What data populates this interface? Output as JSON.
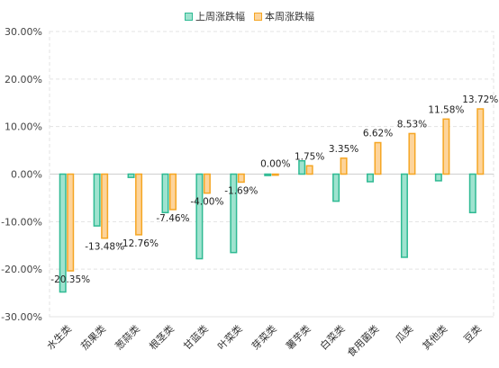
{
  "chart_data": {
    "type": "bar",
    "categories": [
      "水生类",
      "茄果类",
      "葱蒜类",
      "根茎类",
      "甘蓝类",
      "叶菜类",
      "芽菜类",
      "薯芋类",
      "白菜类",
      "食用菌类",
      "瓜类",
      "其他类",
      "豆类"
    ],
    "series": [
      {
        "name": "上周涨跌幅",
        "values": [
          -24.8,
          -10.9,
          -0.7,
          -8.1,
          -17.8,
          -16.5,
          -0.3,
          2.8,
          -5.7,
          -1.6,
          -17.5,
          -1.4,
          -8.1
        ]
      },
      {
        "name": "本周涨跌幅",
        "values": [
          -20.35,
          -13.48,
          -12.76,
          -7.46,
          -4.0,
          -1.69,
          0.0,
          1.75,
          3.35,
          6.62,
          8.53,
          11.58,
          13.72
        ]
      }
    ],
    "data_labels": [
      "-20.35%",
      "-13.48%",
      "-12.76%",
      "-7.46%",
      "-4.00%",
      "-1.69%",
      "0.00%",
      "1.75%",
      "3.35%",
      "6.62%",
      "8.53%",
      "11.58%",
      "13.72%"
    ],
    "ylim": [
      -30,
      30
    ],
    "yticks": [
      30,
      20,
      10,
      0,
      -10,
      -20,
      -30
    ],
    "ytick_labels": [
      "30.00%",
      "20.00%",
      "10.00%",
      "0.00%",
      "-10.00%",
      "-20.00%",
      "-30.00%"
    ],
    "grid": true,
    "legend_position": "top-center",
    "colors": {
      "series1_fill": "#9fe3cf",
      "series1_stroke": "#2fba93",
      "series2_fill": "#fdd49b",
      "series2_stroke": "#f5a623"
    }
  }
}
